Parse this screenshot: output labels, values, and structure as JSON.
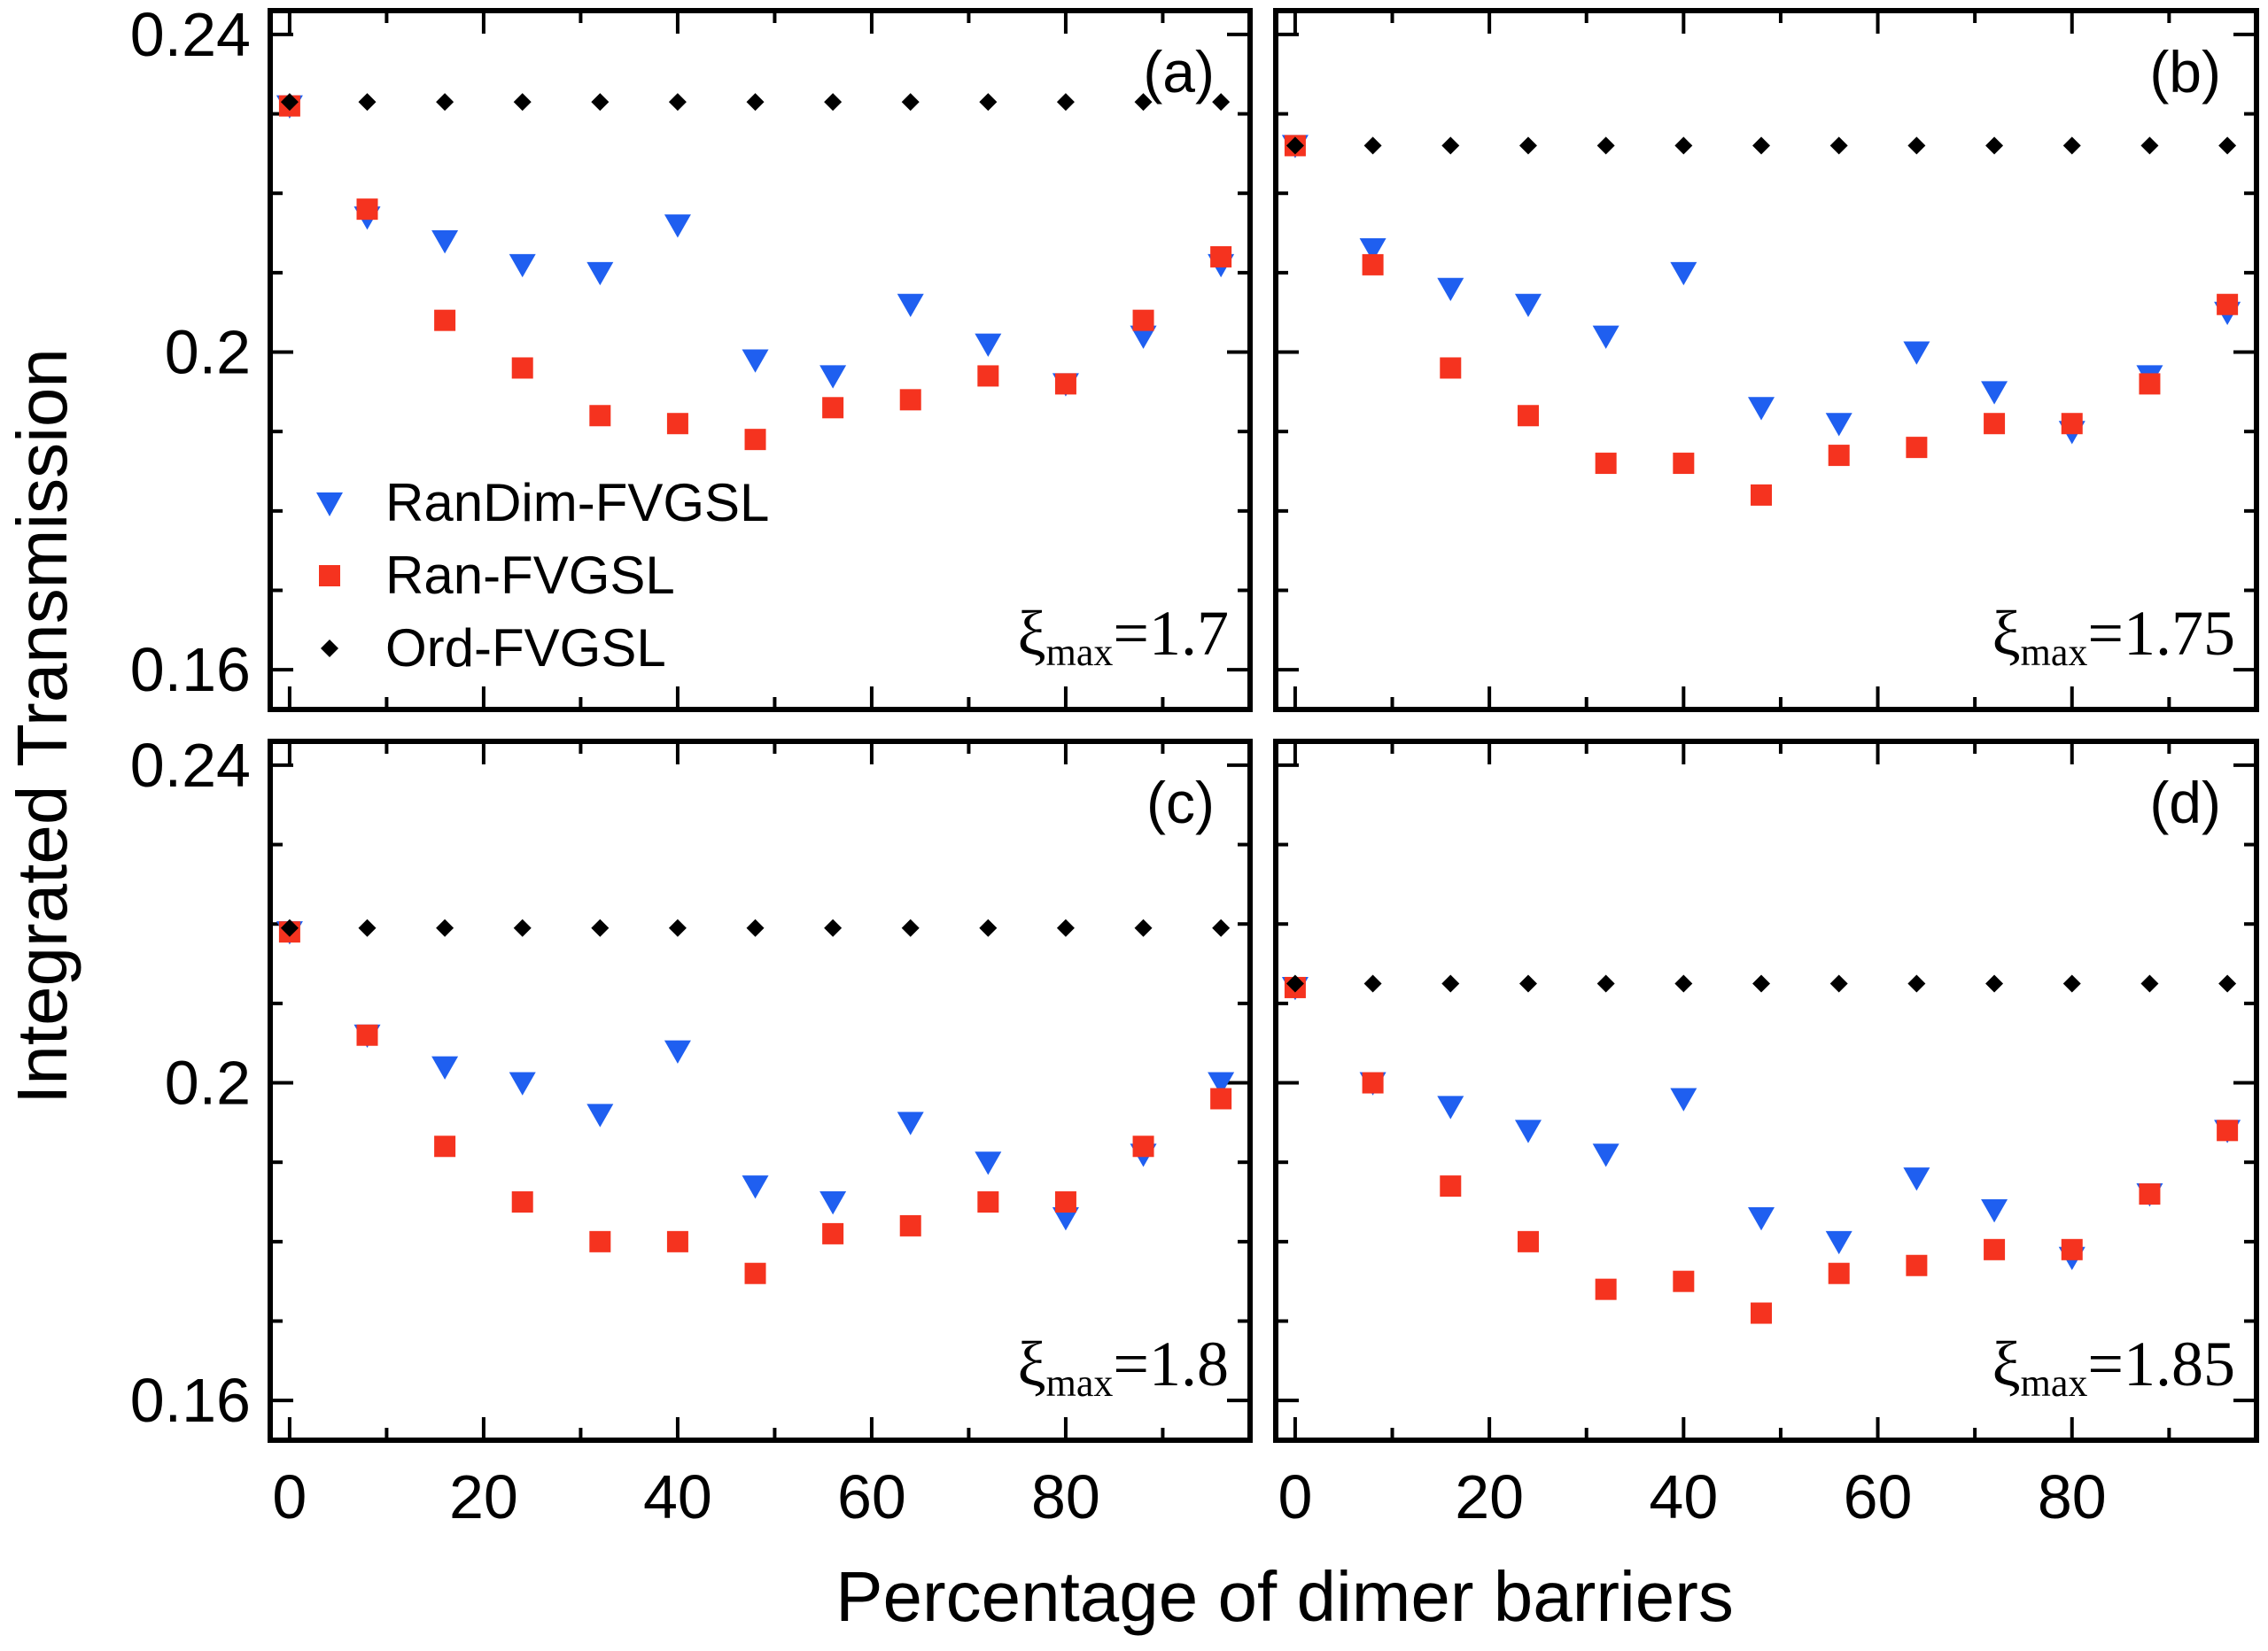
{
  "figure": {
    "ylabel": "Integrated Transmission",
    "xlabel": "Percentage of dimer barriers",
    "legend": {
      "placement": "panel-a-bottom-left",
      "entries": [
        {
          "label": "RanDim-FVGSL",
          "marker": "triangle-down",
          "color": "#1f5ff0"
        },
        {
          "label": "Ran-FVGSL",
          "marker": "square",
          "color": "#f5331f"
        },
        {
          "label": "Ord-FVGSL",
          "marker": "diamond",
          "color": "#000000"
        }
      ]
    },
    "colors": {
      "randim": "#1f5ff0",
      "ran": "#f5331f",
      "ord": "#000000"
    }
  },
  "chart_data": [
    {
      "type": "scatter",
      "panel": "(a)",
      "annotation": {
        "symbol": "ξ",
        "sub": "max",
        "value": "=1.7"
      },
      "x": [
        0,
        8,
        16,
        24,
        32,
        40,
        48,
        56,
        64,
        72,
        80,
        88,
        96
      ],
      "xlim": [
        -2,
        99
      ],
      "ylim": [
        0.155,
        0.243
      ],
      "xticks": [
        0,
        20,
        40,
        60,
        80
      ],
      "yticks": [
        0.16,
        0.2,
        0.24
      ],
      "ytick_labels": [
        "0.16",
        "0.2",
        "0.24"
      ],
      "series": [
        {
          "name": "RanDim-FVGSL",
          "marker": "triangle-down",
          "values": [
            0.231,
            0.217,
            0.214,
            0.211,
            0.21,
            0.216,
            0.199,
            0.197,
            0.206,
            0.201,
            0.196,
            0.202,
            0.211
          ]
        },
        {
          "name": "Ran-FVGSL",
          "marker": "square",
          "values": [
            0.231,
            0.218,
            0.204,
            0.198,
            0.192,
            0.191,
            0.189,
            0.193,
            0.194,
            0.197,
            0.196,
            0.204,
            0.212
          ]
        },
        {
          "name": "Ord-FVGSL",
          "marker": "diamond",
          "values": [
            0.2315,
            0.2315,
            0.2315,
            0.2315,
            0.2315,
            0.2315,
            0.2315,
            0.2315,
            0.2315,
            0.2315,
            0.2315,
            0.2315,
            0.2315
          ]
        }
      ]
    },
    {
      "type": "scatter",
      "panel": "(b)",
      "annotation": {
        "symbol": "ξ",
        "sub": "max",
        "value": "=1.75"
      },
      "x": [
        0,
        8,
        16,
        24,
        32,
        40,
        48,
        56,
        64,
        72,
        80,
        88,
        96
      ],
      "xlim": [
        -2,
        99
      ],
      "ylim": [
        0.155,
        0.243
      ],
      "xticks": [
        0,
        20,
        40,
        60,
        80
      ],
      "yticks": [
        0.16,
        0.2,
        0.24
      ],
      "series": [
        {
          "name": "RanDim-FVGSL",
          "marker": "triangle-down",
          "values": [
            0.226,
            0.213,
            0.208,
            0.206,
            0.202,
            0.21,
            0.193,
            0.191,
            0.2,
            0.195,
            0.19,
            0.197,
            0.205
          ]
        },
        {
          "name": "Ran-FVGSL",
          "marker": "square",
          "values": [
            0.226,
            0.211,
            0.198,
            0.192,
            0.186,
            0.186,
            0.182,
            0.187,
            0.188,
            0.191,
            0.191,
            0.196,
            0.206
          ]
        },
        {
          "name": "Ord-FVGSL",
          "marker": "diamond",
          "values": [
            0.226,
            0.226,
            0.226,
            0.226,
            0.226,
            0.226,
            0.226,
            0.226,
            0.226,
            0.226,
            0.226,
            0.226,
            0.226
          ]
        }
      ]
    },
    {
      "type": "scatter",
      "panel": "(c)",
      "annotation": {
        "symbol": "ξ",
        "sub": "max",
        "value": "=1.8"
      },
      "x": [
        0,
        8,
        16,
        24,
        32,
        40,
        48,
        56,
        64,
        72,
        80,
        88,
        96
      ],
      "xlim": [
        -2,
        99
      ],
      "ylim": [
        0.155,
        0.243
      ],
      "xticks": [
        0,
        20,
        40,
        60,
        80
      ],
      "xtick_labels": [
        "0",
        "20",
        "40",
        "60",
        "80"
      ],
      "yticks": [
        0.16,
        0.2,
        0.24
      ],
      "ytick_labels": [
        "0.16",
        "0.2",
        "0.24"
      ],
      "series": [
        {
          "name": "RanDim-FVGSL",
          "marker": "triangle-down",
          "values": [
            0.219,
            0.206,
            0.202,
            0.2,
            0.196,
            0.204,
            0.187,
            0.185,
            0.195,
            0.19,
            0.183,
            0.191,
            0.2
          ]
        },
        {
          "name": "Ran-FVGSL",
          "marker": "square",
          "values": [
            0.219,
            0.206,
            0.192,
            0.185,
            0.18,
            0.18,
            0.176,
            0.181,
            0.182,
            0.185,
            0.185,
            0.192,
            0.198
          ]
        },
        {
          "name": "Ord-FVGSL",
          "marker": "diamond",
          "values": [
            0.2195,
            0.2195,
            0.2195,
            0.2195,
            0.2195,
            0.2195,
            0.2195,
            0.2195,
            0.2195,
            0.2195,
            0.2195,
            0.2195,
            0.2195
          ]
        }
      ]
    },
    {
      "type": "scatter",
      "panel": "(d)",
      "annotation": {
        "symbol": "ξ",
        "sub": "max",
        "value": "=1.85"
      },
      "x": [
        0,
        8,
        16,
        24,
        32,
        40,
        48,
        56,
        64,
        72,
        80,
        88,
        96
      ],
      "xlim": [
        -2,
        99
      ],
      "ylim": [
        0.155,
        0.243
      ],
      "xticks": [
        0,
        20,
        40,
        60,
        80
      ],
      "xtick_labels": [
        "0",
        "20",
        "40",
        "60",
        "80"
      ],
      "yticks": [
        0.16,
        0.2,
        0.24
      ],
      "series": [
        {
          "name": "RanDim-FVGSL",
          "marker": "triangle-down",
          "values": [
            0.212,
            0.2,
            0.197,
            0.194,
            0.191,
            0.198,
            0.183,
            0.18,
            0.188,
            0.184,
            0.178,
            0.186,
            0.194
          ]
        },
        {
          "name": "Ran-FVGSL",
          "marker": "square",
          "values": [
            0.212,
            0.2,
            0.187,
            0.18,
            0.174,
            0.175,
            0.171,
            0.176,
            0.177,
            0.179,
            0.179,
            0.186,
            0.194
          ]
        },
        {
          "name": "Ord-FVGSL",
          "marker": "diamond",
          "values": [
            0.2125,
            0.2125,
            0.2125,
            0.2125,
            0.2125,
            0.2125,
            0.2125,
            0.2125,
            0.2125,
            0.2125,
            0.2125,
            0.2125,
            0.2125
          ]
        }
      ]
    }
  ]
}
